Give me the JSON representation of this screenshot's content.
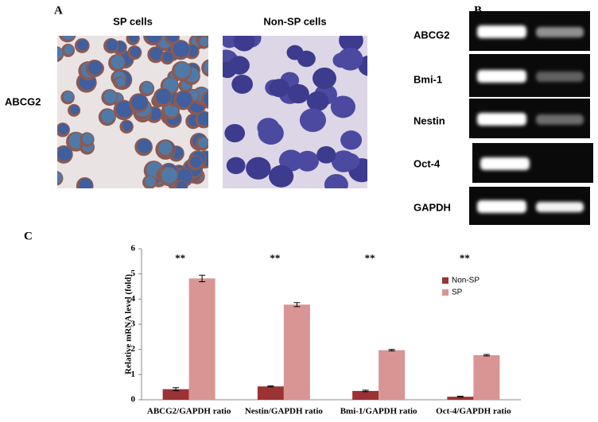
{
  "figure": {
    "panel_labels": [
      "A",
      "B",
      "C"
    ],
    "panel_a": {
      "columns": [
        "SP cells",
        "Non-SP cells"
      ],
      "row_label": "ABCG2"
    },
    "panel_b": {
      "genes": [
        "ABCG2",
        "Bmi-1",
        "Nestin",
        "Oct-4",
        "GAPDH"
      ]
    }
  },
  "chart_data": {
    "type": "bar",
    "ylabel": "Relative  mRNA level (fold)",
    "categories": [
      "ABCG2/GAPDH ratio",
      "Nestin/GAPDH ratio",
      "Bmi-1/GAPDH ratio",
      "Oct-4/GAPDH ratio"
    ],
    "series": [
      {
        "name": "Non-SP",
        "color": "#9b3234",
        "values": [
          0.42,
          0.53,
          0.35,
          0.12
        ],
        "errors": [
          0.06,
          0.02,
          0.03,
          0.02
        ]
      },
      {
        "name": "SP",
        "color": "#d99594",
        "values": [
          4.82,
          3.78,
          1.97,
          1.77
        ],
        "errors": [
          0.13,
          0.08,
          0.03,
          0.03
        ]
      }
    ],
    "annotations": [
      "**",
      "**",
      "**",
      "**"
    ],
    "ylim": [
      0,
      6
    ],
    "yticks": [
      0,
      1,
      2,
      3,
      4,
      5,
      6
    ],
    "legend": "upper right"
  }
}
